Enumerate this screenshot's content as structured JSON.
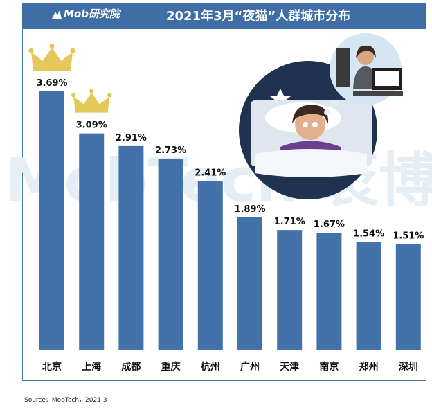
{
  "header": {
    "logo_text": "Mob研究院",
    "title": "2021年3月“夜猫”人群城市分布"
  },
  "watermark": "MobTech 袤博",
  "source": "Source：MobTech，2021.3",
  "colors": {
    "header": "#3f6ea6",
    "bar": "#4272a9",
    "crown": "#e5c85a"
  },
  "chart_data": {
    "type": "bar",
    "title": "2021年3月“夜猫”人群城市分布",
    "categories": [
      "北京",
      "上海",
      "成都",
      "重庆",
      "杭州",
      "广州",
      "天津",
      "南京",
      "郑州",
      "深圳"
    ],
    "values": [
      3.69,
      3.09,
      2.91,
      2.73,
      2.41,
      1.89,
      1.71,
      1.67,
      1.54,
      1.51
    ],
    "data_labels": [
      "3.69%",
      "3.09%",
      "2.91%",
      "2.73%",
      "2.41%",
      "1.89%",
      "1.71%",
      "1.67%",
      "1.54%",
      "1.51%"
    ],
    "unit": "%",
    "ylim": [
      0,
      3.69
    ],
    "grid": false,
    "crowned_categories": [
      "北京",
      "上海"
    ]
  }
}
